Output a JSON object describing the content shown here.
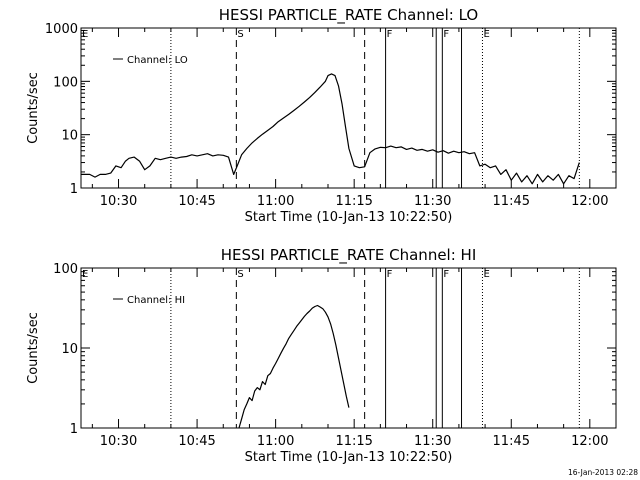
{
  "chart_data": [
    {
      "type": "line",
      "title": "HESSI PARTICLE_RATE Channel: LO",
      "xlabel": "Start Time (10-Jan-13 10:22:50)",
      "ylabel": "Counts/sec",
      "yscale": "log",
      "ylim": [
        1,
        1000
      ],
      "yticks": [
        "1",
        "10",
        "100",
        "1000"
      ],
      "xlim": [
        "10:22:50",
        "12:05:00"
      ],
      "xticks": [
        "10:30",
        "10:45",
        "11:00",
        "11:15",
        "11:30",
        "11:45",
        "12:00"
      ],
      "legend": {
        "label": "Channel: LO",
        "position": "top-left"
      },
      "grid": false,
      "color": "#000000",
      "markers": [
        {
          "label": "E",
          "time": "10:22:50",
          "style": "none"
        },
        {
          "label": "",
          "time": "10:40:00",
          "style": "dotted"
        },
        {
          "label": "S",
          "time": "10:52:30",
          "style": "dashed"
        },
        {
          "label": "",
          "time": "11:17:00",
          "style": "dashed"
        },
        {
          "label": "F",
          "time": "11:21:00",
          "style": "solid"
        },
        {
          "label": "",
          "time": "11:30:40",
          "style": "solid"
        },
        {
          "label": "F",
          "time": "11:31:50",
          "style": "solid"
        },
        {
          "label": "",
          "time": "11:35:30",
          "style": "solid"
        },
        {
          "label": "E",
          "time": "11:39:30",
          "style": "dotted"
        },
        {
          "label": "",
          "time": "11:58:00",
          "style": "dotted"
        }
      ],
      "series": [
        {
          "name": "Channel: LO",
          "x": [
            "10:22:50",
            "10:23:30",
            "10:24:30",
            "10:25:30",
            "10:26:30",
            "10:27:30",
            "10:28:30",
            "10:29:30",
            "10:30:30",
            "10:31:20",
            "10:32:00",
            "10:33:00",
            "10:34:00",
            "10:35:00",
            "10:36:00",
            "10:37:00",
            "10:38:00",
            "10:39:00",
            "10:40:00",
            "10:41:00",
            "10:42:00",
            "10:43:00",
            "10:44:00",
            "10:45:00",
            "10:46:00",
            "10:47:00",
            "10:48:00",
            "10:49:00",
            "10:50:00",
            "10:51:00",
            "10:52:00",
            "10:52:40",
            "10:53:30",
            "10:54:30",
            "10:55:30",
            "10:56:30",
            "10:57:30",
            "10:58:30",
            "10:59:30",
            "11:00:30",
            "11:01:30",
            "11:02:30",
            "11:03:30",
            "11:04:30",
            "11:05:30",
            "11:06:30",
            "11:07:30",
            "11:08:30",
            "11:09:30",
            "11:10:00",
            "11:10:40",
            "11:11:20",
            "11:12:00",
            "11:12:40",
            "11:13:20",
            "11:14:00",
            "11:15:00",
            "11:16:00",
            "11:17:00",
            "11:18:00",
            "11:19:00",
            "11:20:00",
            "11:21:00",
            "11:22:00",
            "11:23:00",
            "11:24:00",
            "11:25:00",
            "11:26:00",
            "11:27:00",
            "11:28:00",
            "11:29:00",
            "11:30:00",
            "11:31:00",
            "11:32:00",
            "11:33:00",
            "11:34:00",
            "11:35:00",
            "11:36:00",
            "11:37:00",
            "11:38:00",
            "11:39:00",
            "11:40:00",
            "11:41:00",
            "11:42:00",
            "11:43:00",
            "11:44:00",
            "11:45:00",
            "11:46:00",
            "11:47:00",
            "11:48:00",
            "11:49:00",
            "11:50:00",
            "11:51:00",
            "11:52:00",
            "11:53:00",
            "11:54:00",
            "11:55:00",
            "11:56:00",
            "11:57:00",
            "11:58:00"
          ],
          "values": [
            1.8,
            1.8,
            1.8,
            1.6,
            1.8,
            1.8,
            1.9,
            2.6,
            2.4,
            3.2,
            3.6,
            3.8,
            3.2,
            2.2,
            2.6,
            3.6,
            3.4,
            3.6,
            3.8,
            3.6,
            3.8,
            3.9,
            4.2,
            4.0,
            4.2,
            4.4,
            4.0,
            4.2,
            4.1,
            3.8,
            1.8,
            2.6,
            4.2,
            5.5,
            7.0,
            8.5,
            10.2,
            12.0,
            14.2,
            17.5,
            20.5,
            24.0,
            28.5,
            34.0,
            41.0,
            50.0,
            62.0,
            78.0,
            100.0,
            128.0,
            138.0,
            128.0,
            82.0,
            38.0,
            14.5,
            5.5,
            2.6,
            2.4,
            2.5,
            4.6,
            5.4,
            5.8,
            5.7,
            6.1,
            5.7,
            5.9,
            5.3,
            5.6,
            5.1,
            5.3,
            4.9,
            5.2,
            4.7,
            5.0,
            4.5,
            4.9,
            4.6,
            4.8,
            4.4,
            4.6,
            2.6,
            2.8,
            2.4,
            2.6,
            1.8,
            2.2,
            1.4,
            1.9,
            1.3,
            1.7,
            1.2,
            1.8,
            1.3,
            1.7,
            1.4,
            1.8,
            1.2,
            1.7,
            1.5,
            3.0
          ]
        }
      ]
    },
    {
      "type": "line",
      "title": "HESSI PARTICLE_RATE Channel: HI",
      "xlabel": "Start Time (10-Jan-13 10:22:50)",
      "ylabel": "Counts/sec",
      "yscale": "log",
      "ylim": [
        1,
        100
      ],
      "yticks": [
        "1",
        "10",
        "100"
      ],
      "xlim": [
        "10:22:50",
        "12:05:00"
      ],
      "xticks": [
        "10:30",
        "10:45",
        "11:00",
        "11:15",
        "11:30",
        "11:45",
        "12:00"
      ],
      "legend": {
        "label": "Channel: HI",
        "position": "top-left"
      },
      "grid": false,
      "color": "#000000",
      "markers": [
        {
          "label": "E",
          "time": "10:22:50",
          "style": "none"
        },
        {
          "label": "",
          "time": "10:40:00",
          "style": "dotted"
        },
        {
          "label": "S",
          "time": "10:52:30",
          "style": "dashed"
        },
        {
          "label": "",
          "time": "11:17:00",
          "style": "dashed"
        },
        {
          "label": "F",
          "time": "11:21:00",
          "style": "solid"
        },
        {
          "label": "",
          "time": "11:30:40",
          "style": "solid"
        },
        {
          "label": "F",
          "time": "11:31:50",
          "style": "solid"
        },
        {
          "label": "",
          "time": "11:35:30",
          "style": "solid"
        },
        {
          "label": "E",
          "time": "11:39:30",
          "style": "dotted"
        },
        {
          "label": "",
          "time": "11:58:00",
          "style": "dotted"
        }
      ],
      "series": [
        {
          "name": "Channel: HI",
          "x": [
            "10:53:00",
            "10:53:30",
            "10:54:00",
            "10:54:30",
            "10:55:00",
            "10:55:30",
            "10:56:00",
            "10:56:30",
            "10:57:00",
            "10:57:30",
            "10:58:00",
            "10:58:30",
            "10:59:00",
            "10:59:30",
            "11:00:00",
            "11:00:30",
            "11:01:00",
            "11:01:30",
            "11:02:00",
            "11:02:30",
            "11:03:00",
            "11:03:30",
            "11:04:00",
            "11:04:30",
            "11:05:00",
            "11:05:30",
            "11:06:00",
            "11:06:30",
            "11:07:00",
            "11:07:30",
            "11:08:00",
            "11:08:30",
            "11:09:00",
            "11:09:30",
            "11:10:00",
            "11:10:30",
            "11:11:00",
            "11:11:30",
            "11:12:00",
            "11:12:30",
            "11:13:00",
            "11:13:30",
            "11:14:00"
          ],
          "values": [
            1.0,
            1.3,
            1.7,
            2.0,
            2.4,
            2.2,
            2.9,
            3.2,
            3.0,
            3.8,
            3.5,
            4.5,
            4.8,
            5.6,
            6.4,
            7.4,
            8.6,
            9.9,
            11.3,
            13.2,
            14.8,
            16.6,
            18.6,
            20.5,
            22.6,
            24.8,
            27.0,
            29.0,
            31.5,
            33.0,
            34.0,
            32.5,
            31.0,
            28.0,
            24.5,
            20.0,
            15.2,
            11.0,
            7.5,
            5.2,
            3.6,
            2.5,
            1.8
          ]
        }
      ]
    }
  ],
  "timestamp": "16-Jan-2013 02:28"
}
